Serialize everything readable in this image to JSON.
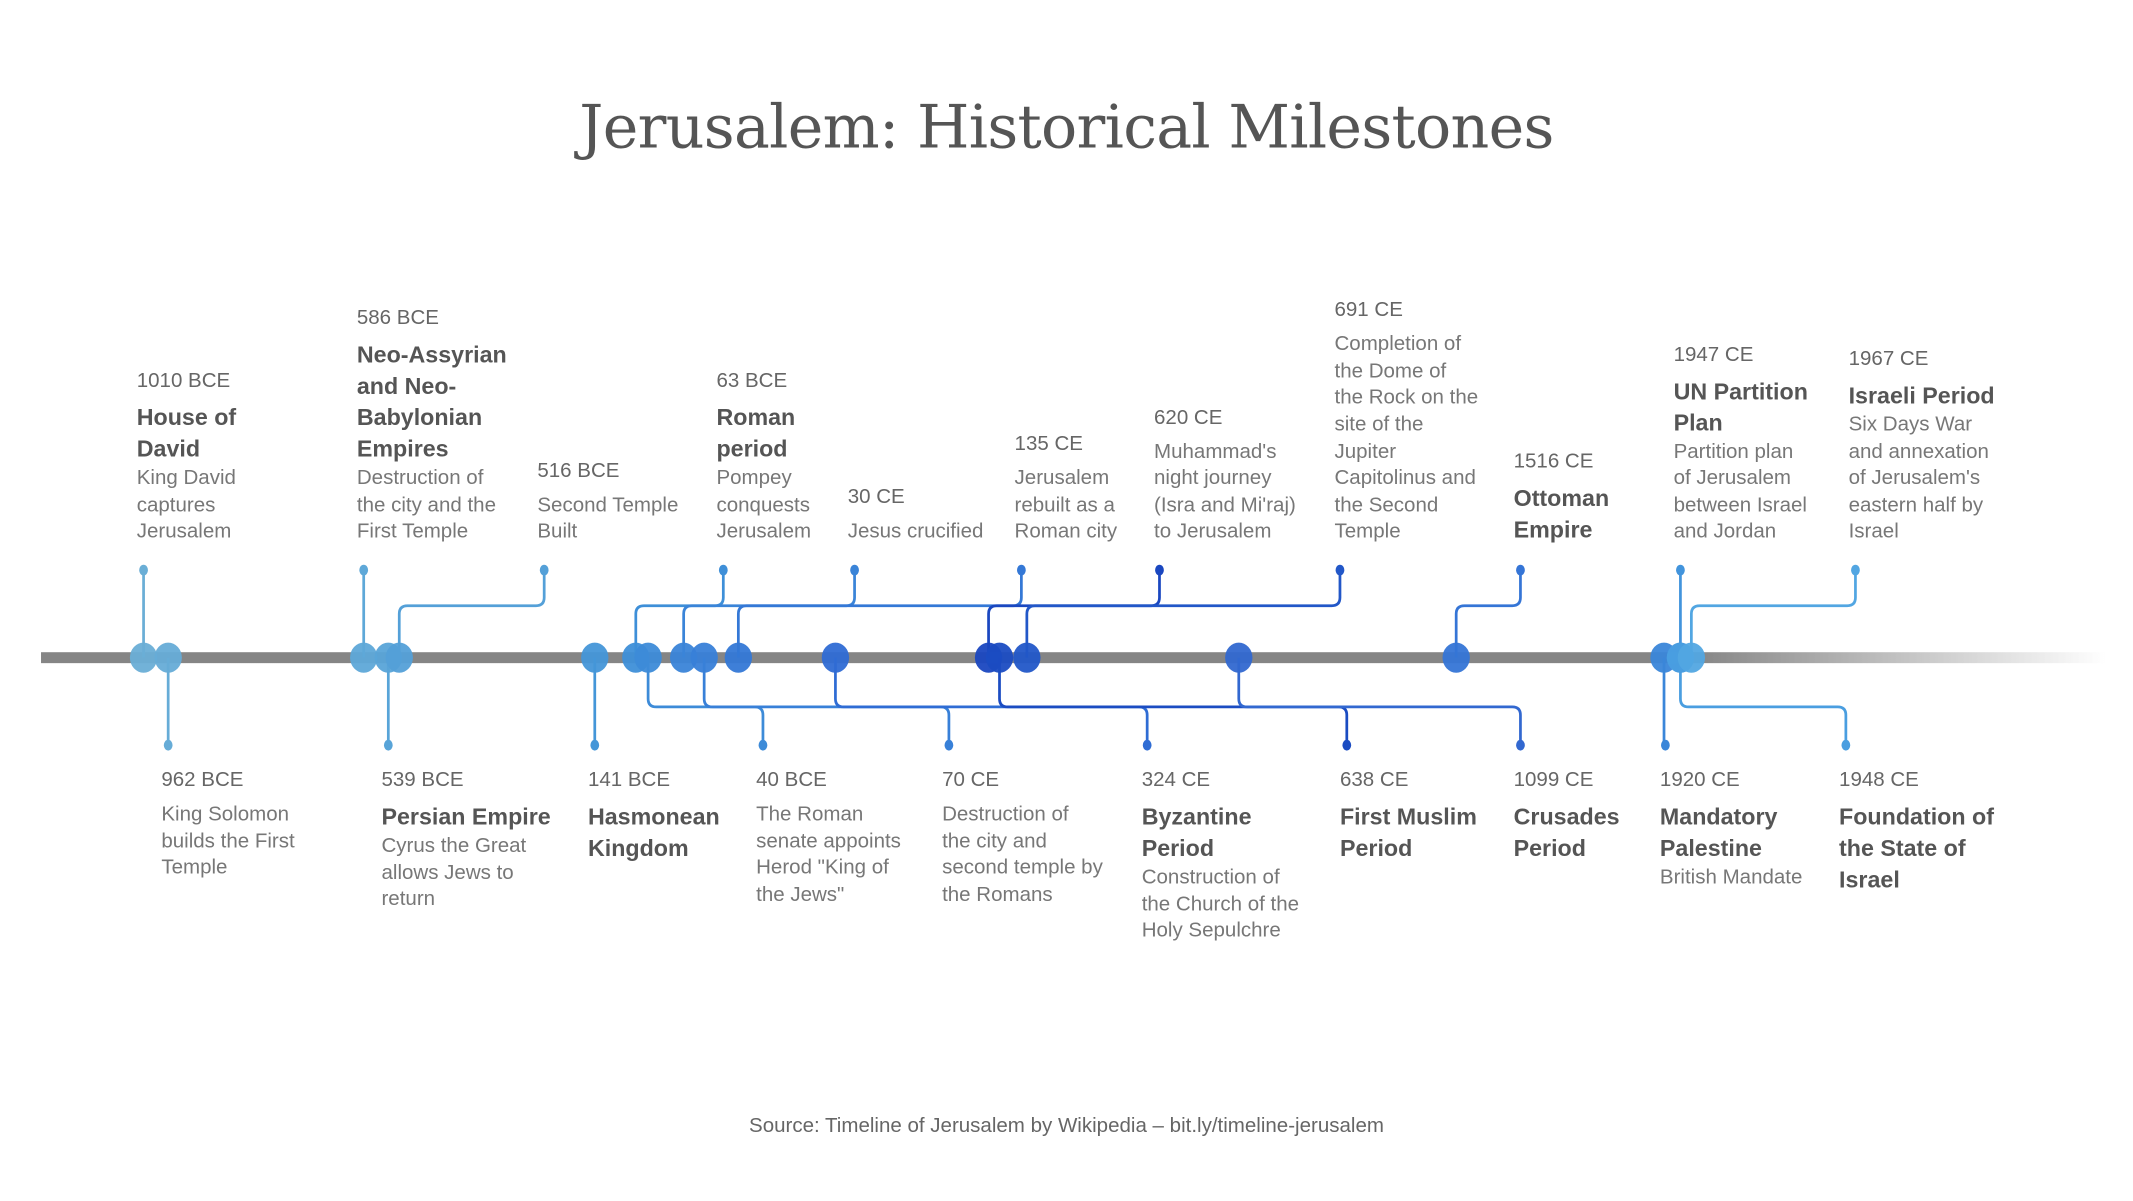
{
  "title": "Jerusalem: Historical Milestones",
  "source": "Source: Timeline of Jerusalem by Wikipedia – bit.ly/timeline-jerusalem",
  "colors": {
    "axis": "#858585",
    "text": "#555555"
  },
  "events": [
    {
      "date": "1010 BCE",
      "title": "House of\nDavid",
      "desc": "King David\ncaptures\nJerusalem",
      "side": "above",
      "color": "#6aaed6"
    },
    {
      "date": "962 BCE",
      "title": "",
      "desc": "King Solomon\nbuilds the First\nTemple",
      "side": "below",
      "color": "#66acd7"
    },
    {
      "date": "586 BCE",
      "title": "Neo-Assyrian\nand Neo-\nBabylonian\nEmpires",
      "desc": "Destruction of\nthe city and the\nFirst Temple",
      "side": "above",
      "color": "#5ea8d8"
    },
    {
      "date": "539 BCE",
      "title": "Persian Empire",
      "desc": "Cyrus the Great\nallows Jews to\nreturn",
      "side": "below",
      "color": "#58a4d8"
    },
    {
      "date": "516 BCE",
      "title": "",
      "desc": "Second Temple\nBuilt",
      "side": "above",
      "color": "#54a0d8"
    },
    {
      "date": "141 BCE",
      "title": "Hasmonean\nKingdom",
      "desc": "",
      "side": "below",
      "color": "#4496d8"
    },
    {
      "date": "63 BCE",
      "title": "Roman\nperiod",
      "desc": "Pompey\nconquests\nJerusalem",
      "side": "above",
      "color": "#3e8fd8"
    },
    {
      "date": "40 BCE",
      "title": "",
      "desc": "The Roman\nsenate appoints\nHerod \"King of\nthe Jews\"",
      "side": "below",
      "color": "#3d8bd8"
    },
    {
      "date": "30 CE",
      "title": "",
      "desc": "Jesus crucified",
      "side": "above",
      "color": "#3a84d8"
    },
    {
      "date": "70 CE",
      "title": "",
      "desc": "Destruction of\nthe city and\nsecond temple by\nthe Romans",
      "side": "below",
      "color": "#3880d8"
    },
    {
      "date": "135 CE",
      "title": "",
      "desc": "Jerusalem\nrebuilt as a\nRoman city",
      "side": "above",
      "color": "#3478d6"
    },
    {
      "date": "324 CE",
      "title": "Byzantine\nPeriod",
      "desc": "Construction of\nthe Church of the\nHoly Sepulchre",
      "side": "below",
      "color": "#2f6cd4"
    },
    {
      "date": "620 CE",
      "title": "",
      "desc": "Muhammad's\nnight journey\n(Isra and Mi'raj)\nto Jerusalem",
      "side": "above",
      "color": "#1a47c0"
    },
    {
      "date": "638 CE",
      "title": "First Muslim\nPeriod",
      "desc": "",
      "side": "below",
      "color": "#1b4cc2"
    },
    {
      "date": "691 CE",
      "title": "",
      "desc": "Completion of\nthe Dome of\nthe Rock on the\nsite of the\nJupiter\nCapitolinus and\nthe Second\nTemple",
      "side": "above",
      "color": "#2257c8"
    },
    {
      "date": "1099 CE",
      "title": "Crusades\nPeriod",
      "desc": "",
      "side": "below",
      "color": "#3268d0"
    },
    {
      "date": "1516 CE",
      "title": "Ottoman\nEmpire",
      "desc": "",
      "side": "above",
      "color": "#3575d6"
    },
    {
      "date": "1920 CE",
      "title": "Mandatory\nPalestine",
      "desc": "British Mandate",
      "side": "below",
      "color": "#3a86d9"
    },
    {
      "date": "1947 CE",
      "title": "UN Partition\nPlan",
      "desc": "Partition plan\nof Jerusalem\nbetween Israel\nand Jordan",
      "side": "above",
      "color": "#4294dc"
    },
    {
      "date": "1948 CE",
      "title": "Foundation of\nthe State of\nIsrael",
      "desc": "",
      "side": "below",
      "color": "#4a9ee0"
    },
    {
      "date": "1967 CE",
      "title": "Israeli Period",
      "desc": "Six Days War\nand annexation\nof Jerusalem's\neastern half by\nIsrael",
      "side": "above",
      "color": "#52a6e2"
    }
  ]
}
